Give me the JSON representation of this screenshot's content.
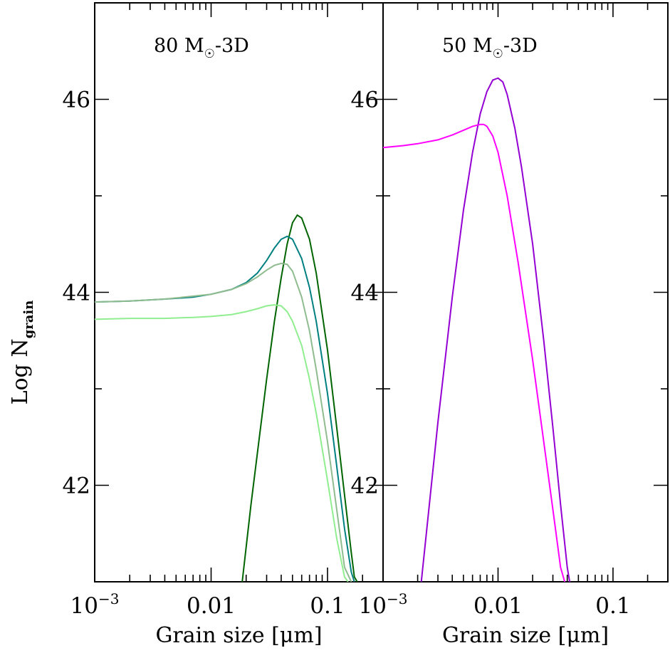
{
  "chart_data": [
    {
      "type": "line",
      "title": "80 M_☉-3D",
      "title_main": "80 M",
      "title_sub": "☉",
      "title_tail": "-3D",
      "xlabel": "Grain size [μm]",
      "ylabel_main": "Log N",
      "ylabel_sub": "grain",
      "x_scale": "log",
      "xlim": [
        0.001,
        0.3
      ],
      "ylim": [
        41.0,
        47.0
      ],
      "x_ticks": [
        {
          "value": 0.001,
          "label_base": "10",
          "label_exp": "−3"
        },
        {
          "value": 0.01,
          "label": "0.01"
        },
        {
          "value": 0.1,
          "label": "0.1"
        }
      ],
      "y_ticks": [
        {
          "value": 42,
          "label": "42"
        },
        {
          "value": 44,
          "label": "44"
        },
        {
          "value": 46,
          "label": "46"
        }
      ],
      "y_minor_ticks": [
        43,
        45
      ],
      "series": [
        {
          "color": "#006400",
          "x": [
            0.0185,
            0.022,
            0.026,
            0.03,
            0.035,
            0.04,
            0.045,
            0.05,
            0.055,
            0.06,
            0.07,
            0.08,
            0.1,
            0.12,
            0.14,
            0.16,
            0.17,
            0.18
          ],
          "y": [
            41.0,
            41.8,
            42.5,
            43.1,
            43.7,
            44.15,
            44.5,
            44.72,
            44.8,
            44.77,
            44.55,
            44.2,
            43.4,
            42.6,
            41.9,
            41.3,
            41.05,
            41.0
          ]
        },
        {
          "color": "#008080",
          "x": [
            0.001,
            0.002,
            0.004,
            0.007,
            0.01,
            0.015,
            0.02,
            0.025,
            0.03,
            0.035,
            0.04,
            0.045,
            0.05,
            0.06,
            0.07,
            0.08,
            0.1,
            0.12,
            0.14,
            0.16,
            0.17
          ],
          "y": [
            43.9,
            43.91,
            43.93,
            43.95,
            43.98,
            44.03,
            44.1,
            44.2,
            44.33,
            44.46,
            44.55,
            44.58,
            44.55,
            44.35,
            44.05,
            43.7,
            42.95,
            42.2,
            41.55,
            41.1,
            41.0
          ]
        },
        {
          "color": "#8fbc8f",
          "x": [
            0.001,
            0.002,
            0.004,
            0.007,
            0.01,
            0.015,
            0.02,
            0.025,
            0.03,
            0.035,
            0.04,
            0.045,
            0.05,
            0.06,
            0.07,
            0.08,
            0.1,
            0.12,
            0.14,
            0.16
          ],
          "y": [
            43.9,
            43.91,
            43.93,
            43.96,
            43.98,
            44.03,
            44.09,
            44.16,
            44.23,
            44.28,
            44.3,
            44.29,
            44.22,
            43.95,
            43.6,
            43.2,
            42.45,
            41.75,
            41.15,
            41.0
          ]
        },
        {
          "color": "#90ee90",
          "x": [
            0.001,
            0.002,
            0.004,
            0.007,
            0.01,
            0.015,
            0.02,
            0.025,
            0.03,
            0.035,
            0.04,
            0.045,
            0.05,
            0.06,
            0.07,
            0.08,
            0.1,
            0.12,
            0.14,
            0.15
          ],
          "y": [
            43.72,
            43.73,
            43.73,
            43.74,
            43.75,
            43.77,
            43.8,
            43.83,
            43.86,
            43.87,
            43.86,
            43.8,
            43.7,
            43.45,
            43.1,
            42.75,
            42.05,
            41.45,
            41.05,
            41.0
          ]
        }
      ]
    },
    {
      "type": "line",
      "title": "50 M_☉-3D",
      "title_main": "50 M",
      "title_sub": "☉",
      "title_tail": "-3D",
      "xlabel": "Grain size [μm]",
      "x_scale": "log",
      "xlim": [
        0.001,
        0.3
      ],
      "ylim": [
        41.0,
        47.0
      ],
      "x_ticks": [
        {
          "value": 0.001,
          "label_base": "10",
          "label_exp": "−3"
        },
        {
          "value": 0.01,
          "label": "0.01"
        },
        {
          "value": 0.1,
          "label": "0.1"
        }
      ],
      "y_ticks": [
        {
          "value": 42,
          "label": "42"
        },
        {
          "value": 44,
          "label": "44"
        },
        {
          "value": 46,
          "label": "46"
        }
      ],
      "y_minor_ticks": [
        43,
        45
      ],
      "series": [
        {
          "color": "#9400d3",
          "x": [
            0.00215,
            0.0025,
            0.003,
            0.0035,
            0.004,
            0.005,
            0.006,
            0.007,
            0.008,
            0.009,
            0.01,
            0.011,
            0.012,
            0.014,
            0.016,
            0.02,
            0.025,
            0.03,
            0.035,
            0.04,
            0.042
          ],
          "y": [
            41.0,
            41.75,
            42.65,
            43.35,
            43.95,
            44.85,
            45.45,
            45.85,
            46.08,
            46.2,
            46.22,
            46.18,
            46.05,
            45.7,
            45.3,
            44.5,
            43.5,
            42.6,
            41.8,
            41.15,
            41.0
          ]
        },
        {
          "color": "#ff00ff",
          "x": [
            0.001,
            0.0015,
            0.002,
            0.003,
            0.004,
            0.005,
            0.006,
            0.007,
            0.0075,
            0.008,
            0.009,
            0.01,
            0.012,
            0.015,
            0.02,
            0.025,
            0.03,
            0.035,
            0.038
          ],
          "y": [
            45.5,
            45.52,
            45.54,
            45.58,
            45.63,
            45.68,
            45.72,
            45.74,
            45.74,
            45.72,
            45.62,
            45.45,
            45.0,
            44.3,
            43.3,
            42.45,
            41.75,
            41.15,
            41.0
          ]
        }
      ]
    }
  ]
}
